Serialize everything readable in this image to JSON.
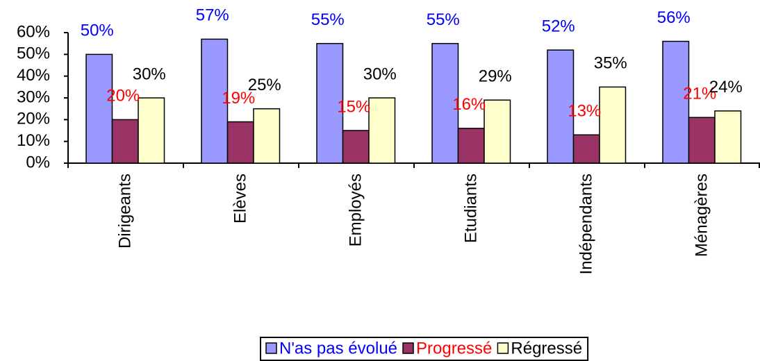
{
  "chart_data": {
    "type": "bar",
    "categories": [
      "Dirigeants",
      "Elèves",
      "Employés",
      "Etudiants",
      "Indépendants",
      "Ménagères"
    ],
    "series": [
      {
        "name": "N'as pas évolué",
        "color": "#9999ff",
        "label_color": "#0000ff",
        "values": [
          50,
          57,
          55,
          55,
          52,
          56
        ],
        "value_labels": [
          "50%",
          "57%",
          "55%",
          "55%",
          "52%",
          "56%"
        ]
      },
      {
        "name": "Progressé",
        "color": "#993366",
        "label_color": "#ff0000",
        "values": [
          20,
          19,
          15,
          16,
          13,
          21
        ],
        "value_labels": [
          "20%",
          "19%",
          "15%",
          "16%",
          "13%",
          "21%"
        ]
      },
      {
        "name": "Régressé",
        "color": "#ffffcc",
        "label_color": "#000000",
        "values": [
          30,
          25,
          30,
          29,
          35,
          24
        ],
        "value_labels": [
          "30%",
          "25%",
          "30%",
          "29%",
          "35%",
          "24%"
        ]
      }
    ],
    "ylim": [
      0,
      60
    ],
    "yticks": [
      {
        "value": 0,
        "label": "0%"
      },
      {
        "value": 10,
        "label": "10%"
      },
      {
        "value": 20,
        "label": "20%"
      },
      {
        "value": 30,
        "label": "30%"
      },
      {
        "value": 40,
        "label": "40%"
      },
      {
        "value": 50,
        "label": "50%"
      },
      {
        "value": 60,
        "label": "60%"
      }
    ],
    "legend": "bottom"
  }
}
